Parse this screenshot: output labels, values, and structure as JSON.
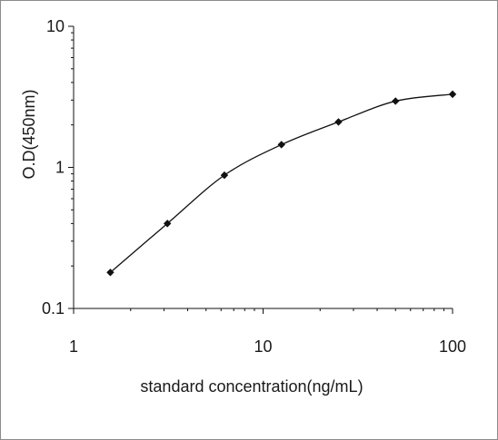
{
  "chart_data": {
    "type": "line",
    "title": "",
    "xlabel": "standard concentration(ng/mL)",
    "ylabel": "O.D(450nm)",
    "xscale": "log",
    "yscale": "log",
    "xlim": [
      1,
      100
    ],
    "ylim": [
      0.1,
      10
    ],
    "x_tick_labels": [
      "1",
      "10",
      "100"
    ],
    "y_tick_labels": [
      "0.1",
      "1",
      "10"
    ],
    "grid": false,
    "legend": "none",
    "marker": "diamond",
    "smooth": true,
    "color": "#111111",
    "series": [
      {
        "x": [
          1.5625,
          3.125,
          6.25,
          12.5,
          25,
          50,
          100
        ],
        "y": [
          0.18,
          0.4,
          0.88,
          1.45,
          2.1,
          2.95,
          3.3
        ]
      }
    ]
  }
}
